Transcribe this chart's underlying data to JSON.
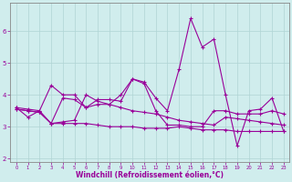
{
  "xlabel": "Windchill (Refroidissement éolien,°C)",
  "xlim": [
    -0.5,
    23.5
  ],
  "ylim": [
    1.9,
    6.9
  ],
  "yticks": [
    2,
    3,
    4,
    5,
    6
  ],
  "xticks": [
    0,
    1,
    2,
    3,
    4,
    5,
    6,
    7,
    8,
    9,
    10,
    11,
    12,
    13,
    14,
    15,
    16,
    17,
    18,
    19,
    20,
    21,
    22,
    23
  ],
  "bg_color": "#d0eded",
  "line_color": "#990099",
  "grid_color": "#b0d4d4",
  "series": [
    [
      3.6,
      3.3,
      3.5,
      4.3,
      4.0,
      4.0,
      3.6,
      3.7,
      3.7,
      4.0,
      4.5,
      4.4,
      3.9,
      3.5,
      4.8,
      6.4,
      5.5,
      5.75,
      4.0,
      2.4,
      3.5,
      3.55,
      3.9,
      2.85
    ],
    [
      3.6,
      3.55,
      3.5,
      3.1,
      3.9,
      3.85,
      3.6,
      3.85,
      3.85,
      3.8,
      4.5,
      4.35,
      3.5,
      3.05,
      3.05,
      3.0,
      3.0,
      3.5,
      3.5,
      3.4,
      3.4,
      3.4,
      3.5,
      3.4
    ],
    [
      3.55,
      3.5,
      3.45,
      3.1,
      3.15,
      3.2,
      4.0,
      3.8,
      3.7,
      3.6,
      3.5,
      3.45,
      3.4,
      3.3,
      3.2,
      3.15,
      3.1,
      3.05,
      3.3,
      3.25,
      3.2,
      3.15,
      3.1,
      3.05
    ],
    [
      3.55,
      3.5,
      3.45,
      3.1,
      3.1,
      3.1,
      3.1,
      3.05,
      3.0,
      3.0,
      3.0,
      2.95,
      2.95,
      2.95,
      3.0,
      2.95,
      2.9,
      2.9,
      2.9,
      2.85,
      2.85,
      2.85,
      2.85,
      2.85
    ]
  ]
}
